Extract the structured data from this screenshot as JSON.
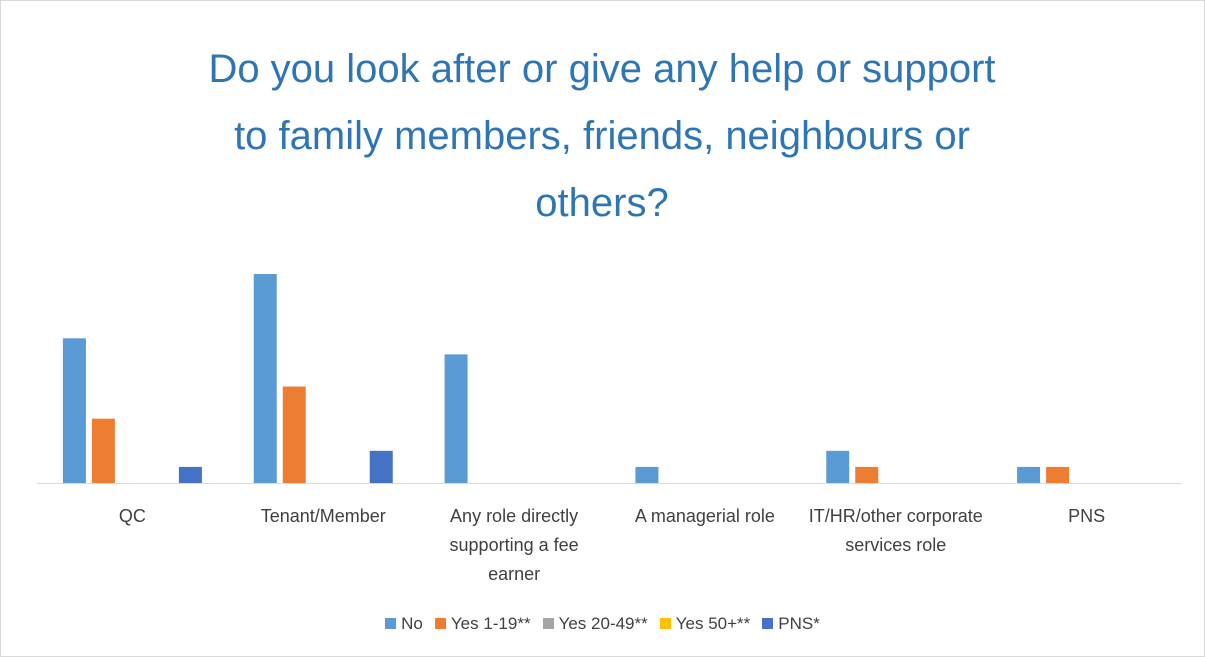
{
  "chart_data": {
    "type": "bar",
    "title": "Do you look after or give any help or support to family members, friends, neighbours or others?",
    "categories": [
      "QC",
      "Tenant/Member",
      "Any role directly supporting a fee earner",
      "A managerial role",
      "IT/HR/other corporate services role",
      "PNS"
    ],
    "series": [
      {
        "name": "No",
        "color": "#5b9bd5",
        "values": [
          9,
          13,
          8,
          1,
          2,
          1
        ]
      },
      {
        "name": "Yes 1-19**",
        "color": "#ed7d31",
        "values": [
          4,
          6,
          0,
          0,
          1,
          1
        ]
      },
      {
        "name": "Yes 20-49**",
        "color": "#a5a5a5",
        "values": [
          0,
          0,
          0,
          0,
          0,
          0
        ]
      },
      {
        "name": "Yes 50+**",
        "color": "#ffc000",
        "values": [
          0,
          0,
          0,
          0,
          0,
          0
        ]
      },
      {
        "name": "PNS*",
        "color": "#4472c4",
        "values": [
          1,
          2,
          0,
          0,
          0,
          0
        ]
      }
    ],
    "legend": "bottom"
  }
}
